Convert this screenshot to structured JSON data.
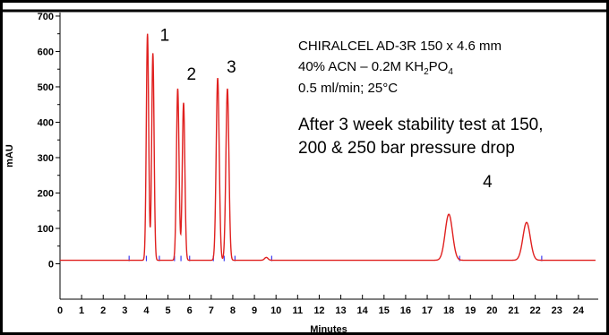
{
  "chart_data": {
    "type": "line",
    "title": "",
    "xlabel": "Minutes",
    "ylabel": "mAU",
    "xlim": [
      0,
      25
    ],
    "ylim": [
      -100,
      710
    ],
    "x_ticks": [
      "0",
      "1",
      "2",
      "3",
      "4",
      "5",
      "6",
      "7",
      "8",
      "9",
      "10",
      "11",
      "12",
      "13",
      "14",
      "15",
      "16",
      "17",
      "18",
      "19",
      "20",
      "21",
      "22",
      "23",
      "24"
    ],
    "y_ticks": [
      "0",
      "100",
      "200",
      "300",
      "400",
      "500",
      "600",
      "700"
    ],
    "baseline": 10,
    "line_color": "#e0201f",
    "axis_color": "#000000",
    "marker_color": "#3a3af0",
    "peaks": [
      {
        "rt": 4.05,
        "height": 650,
        "label": "1"
      },
      {
        "rt": 4.3,
        "height": 595,
        "label": ""
      },
      {
        "rt": 5.45,
        "height": 495,
        "label": "2"
      },
      {
        "rt": 5.72,
        "height": 455,
        "label": ""
      },
      {
        "rt": 7.3,
        "height": 525,
        "label": "3"
      },
      {
        "rt": 7.75,
        "height": 495,
        "label": ""
      },
      {
        "rt": 18.0,
        "height": 140,
        "label": "4"
      },
      {
        "rt": 21.6,
        "height": 117,
        "label": ""
      }
    ],
    "integration_marks": [
      3.2,
      4.0,
      4.6,
      5.3,
      5.6,
      6.0,
      7.1,
      7.6,
      8.1,
      9.8,
      18.5,
      22.3
    ],
    "annotations": {
      "column_line": "CHIRALCEL AD-3R 150 x 4.6 mm",
      "mobile_phase_main": "40% ACN – 0.2M KH",
      "mobile_phase_sub_2": "2",
      "mobile_phase_po": "PO",
      "mobile_phase_sub_4": "4",
      "flow_line": "0.5 ml/min; 25°C",
      "test_line_1": "After 3 week stability test at 150,",
      "test_line_2": "200 & 250 bar pressure drop"
    }
  }
}
